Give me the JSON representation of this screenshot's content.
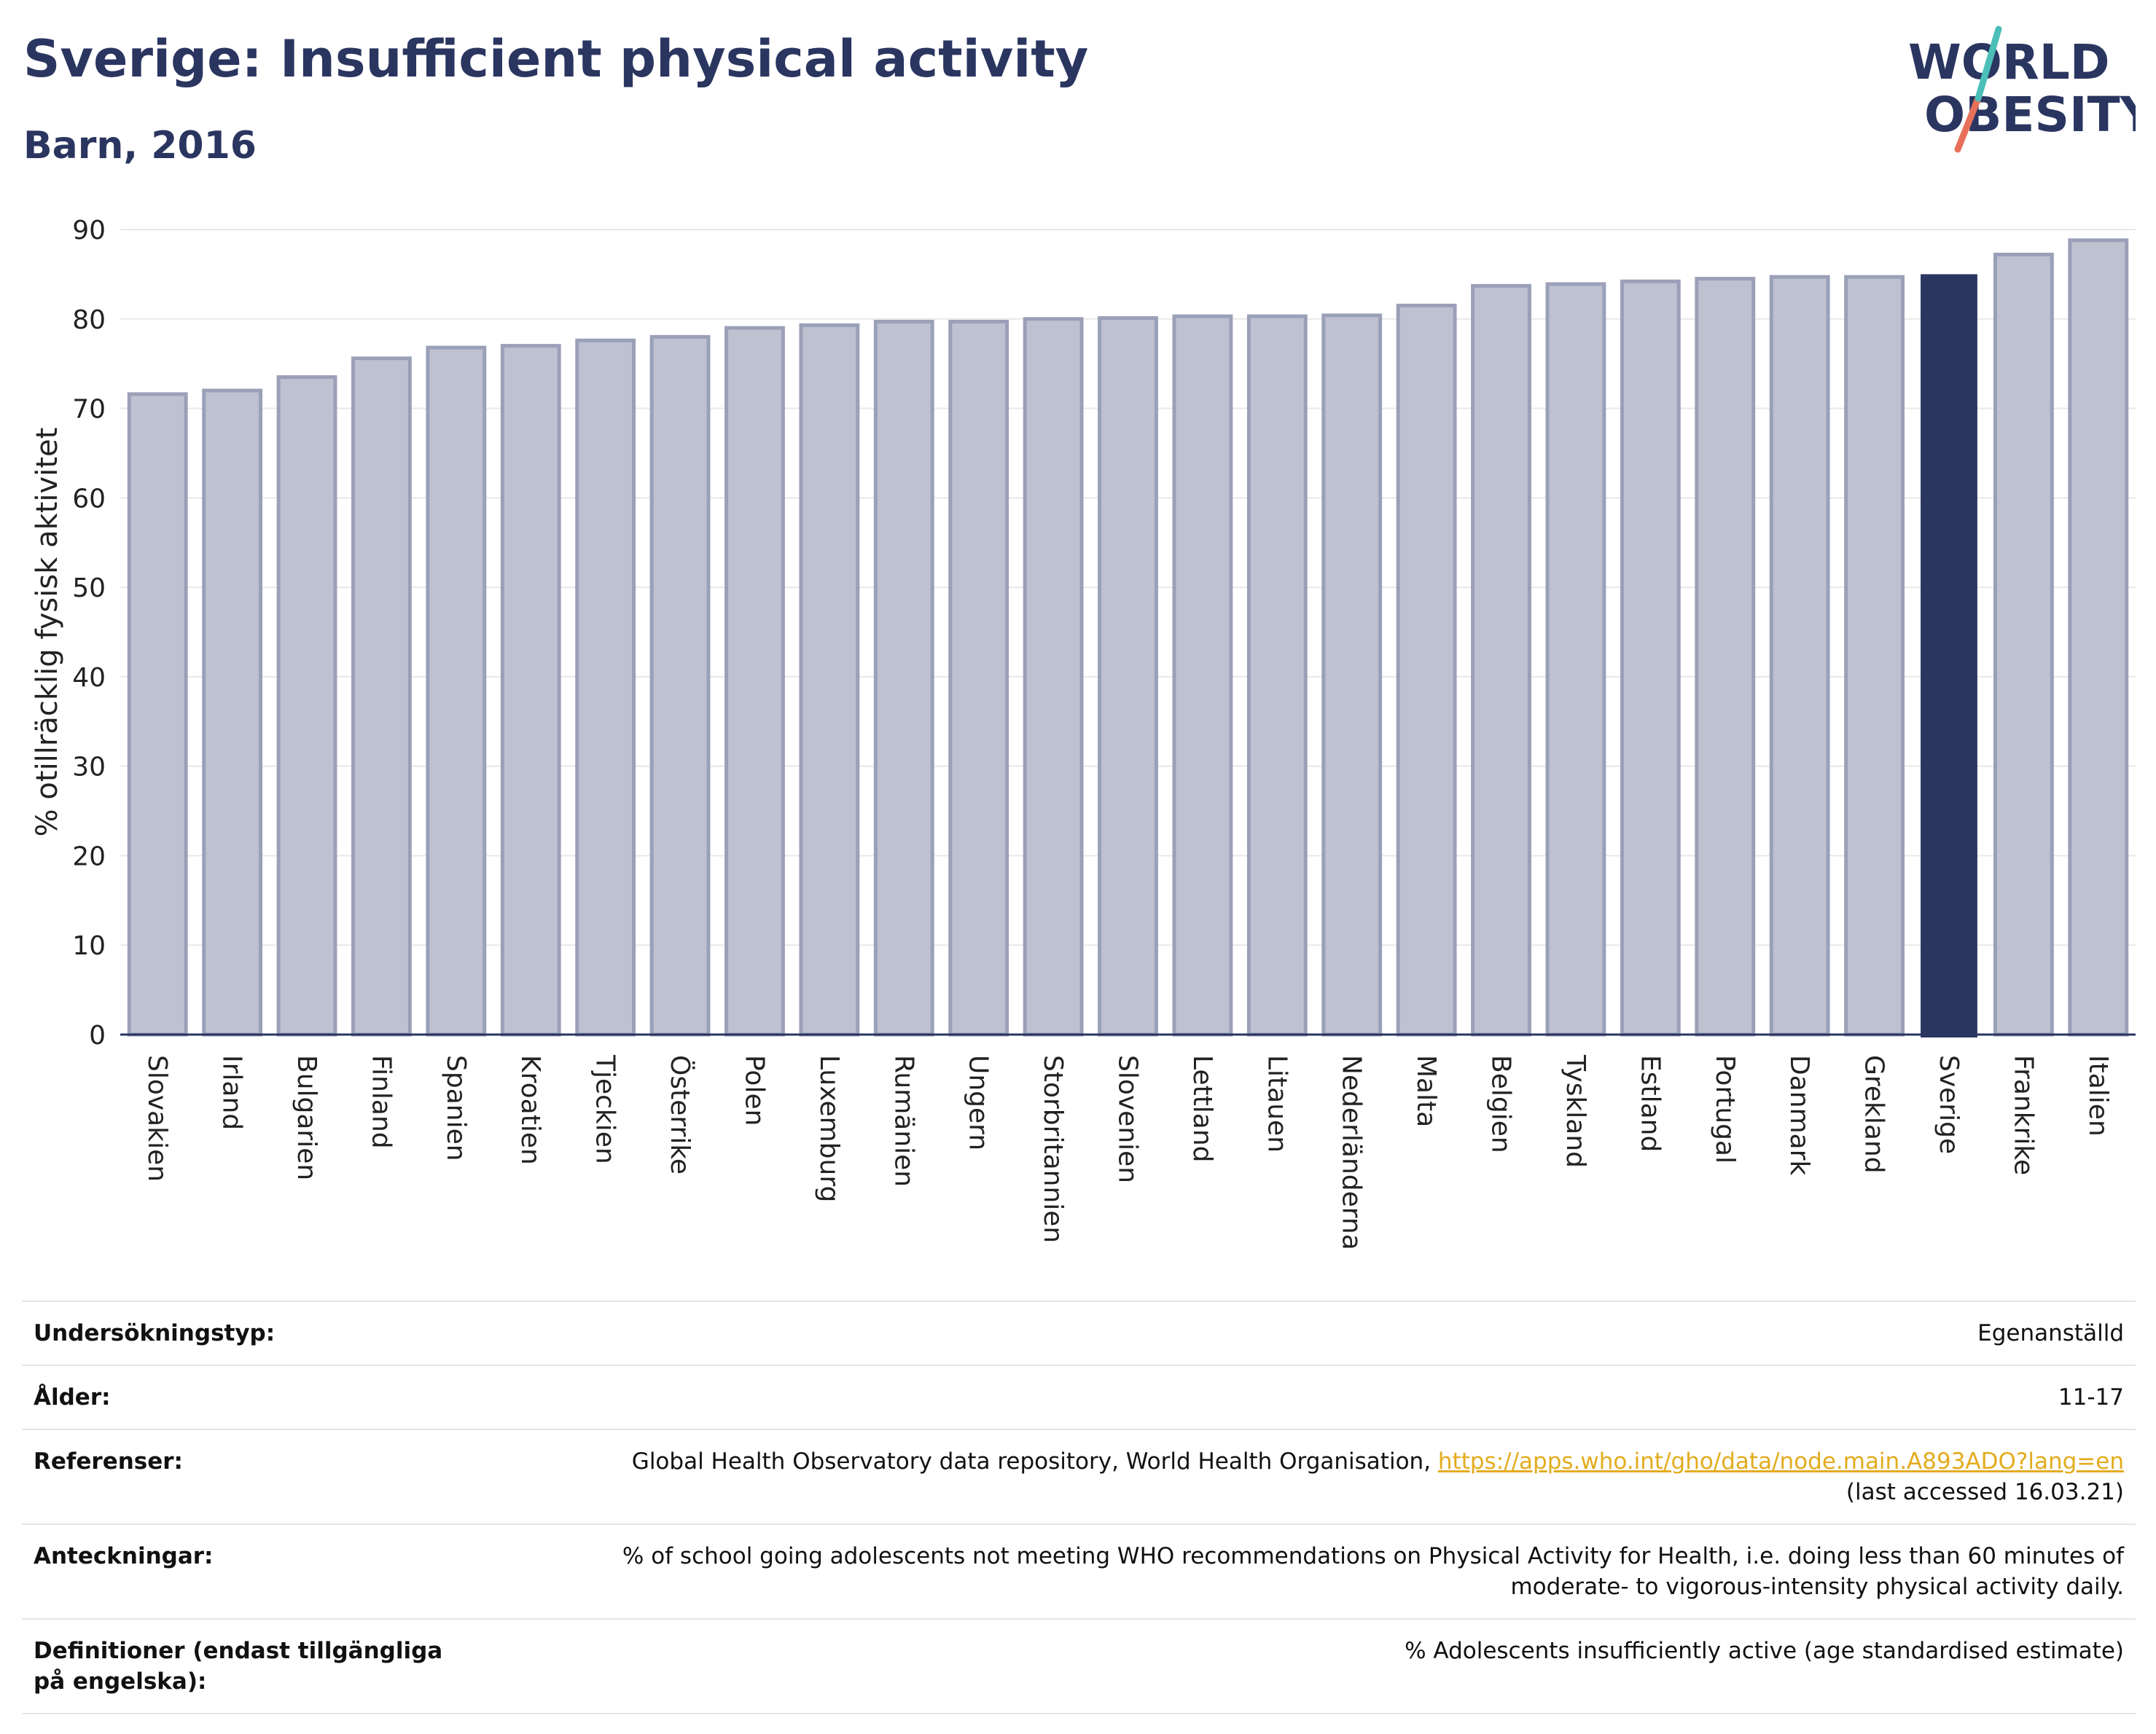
{
  "header": {
    "title": "Sverige: Insufficient physical activity",
    "subtitle": "Barn, 2016"
  },
  "logo": {
    "line1": "WORLD",
    "line2": "OBESITY"
  },
  "colors": {
    "bar": "#bec1d0",
    "bar_stroke": "#9aa0b8",
    "highlight": "#2a3560",
    "axis": "#2a3560",
    "grid": "#e8e8e8",
    "link": "#e3ac1e"
  },
  "chart_data": {
    "type": "bar",
    "ylabel": "% otillräcklig fysisk aktivitet",
    "ylim": [
      0,
      90
    ],
    "yticks": [
      0,
      10,
      20,
      30,
      40,
      50,
      60,
      70,
      80,
      90
    ],
    "grid": true,
    "highlight": "Sverige",
    "categories": [
      "Slovakien",
      "Irland",
      "Bulgarien",
      "Finland",
      "Spanien",
      "Kroatien",
      "Tjeckien",
      "Österrike",
      "Polen",
      "Luxemburg",
      "Rumänien",
      "Ungern",
      "Storbritannien",
      "Slovenien",
      "Lettland",
      "Litauen",
      "Nederländerna",
      "Malta",
      "Belgien",
      "Tyskland",
      "Estland",
      "Portugal",
      "Danmark",
      "Grekland",
      "Sverige",
      "Frankrike",
      "Italien"
    ],
    "values": [
      71.6,
      72.0,
      73.5,
      75.6,
      76.8,
      77.0,
      77.6,
      78.0,
      79.0,
      79.3,
      79.7,
      79.7,
      80.0,
      80.1,
      80.3,
      80.3,
      80.4,
      81.5,
      83.7,
      83.9,
      84.2,
      84.5,
      84.7,
      84.7,
      85.0,
      87.2,
      88.8
    ]
  },
  "info": [
    {
      "key": "Undersökningstyp:",
      "value": "Egenanställd"
    },
    {
      "key": "Ålder:",
      "value": "11-17"
    },
    {
      "key": "Referenser:",
      "value": "Global Health Observatory data repository, World Health Organisation, ",
      "link": "https://apps.who.int/gho/data/node.main.A893ADO?lang=en",
      "value2": "(last accessed 16.03.21)"
    },
    {
      "key": "Anteckningar:",
      "value": "% of school going adolescents not meeting WHO recommendations on Physical Activity for Health, i.e. doing less than 60 minutes of",
      "value2": "moderate- to vigorous-intensity physical activity daily."
    },
    {
      "key": "Definitioner (endast tillgängliga på engelska):",
      "value": "% Adolescents insufficiently active (age standardised estimate)"
    }
  ]
}
